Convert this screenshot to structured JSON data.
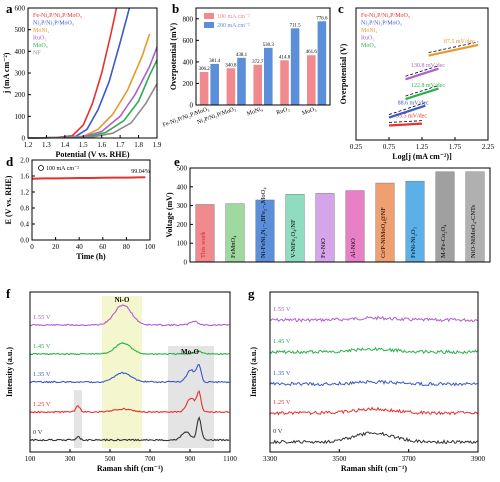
{
  "panel_labels": [
    "a",
    "b",
    "c",
    "d",
    "e",
    "f",
    "g"
  ],
  "chart_data": [
    {
      "panel": "a",
      "type": "line",
      "xlabel": "Potential (V vs. RHE)",
      "ylabel": "j (mA cm⁻²)",
      "xlim": [
        1.2,
        1.9
      ],
      "ylim": [
        0,
        600
      ],
      "xticks": [
        1.2,
        1.3,
        1.4,
        1.5,
        1.6,
        1.7,
        1.8,
        1.9
      ],
      "yticks": [
        0,
        100,
        200,
        300,
        400,
        500,
        600
      ],
      "legend_position": "top-left",
      "series": [
        {
          "name": "Fe-Ni₂P/Ni₂P/MoO₃",
          "color": "#e8312f",
          "x": [
            1.2,
            1.35,
            1.44,
            1.5,
            1.55,
            1.6,
            1.65,
            1.68
          ],
          "y": [
            0,
            2,
            10,
            60,
            160,
            300,
            480,
            600
          ]
        },
        {
          "name": "Ni₂P/Ni₂P/MoO₃",
          "color": "#3b59c7",
          "x": [
            1.2,
            1.36,
            1.46,
            1.52,
            1.58,
            1.64,
            1.7,
            1.75
          ],
          "y": [
            0,
            2,
            8,
            40,
            130,
            260,
            440,
            600
          ]
        },
        {
          "name": "MoNi₄",
          "color": "#e89a2a",
          "x": [
            1.2,
            1.38,
            1.5,
            1.58,
            1.66,
            1.74,
            1.82,
            1.86
          ],
          "y": [
            0,
            2,
            8,
            40,
            110,
            220,
            380,
            480
          ]
        },
        {
          "name": "RuO₂",
          "color": "#b05fd0",
          "x": [
            1.2,
            1.38,
            1.5,
            1.6,
            1.7,
            1.78,
            1.86,
            1.9
          ],
          "y": [
            0,
            2,
            6,
            30,
            100,
            200,
            330,
            420
          ]
        },
        {
          "name": "MoO₃",
          "color": "#2bb04a",
          "x": [
            1.2,
            1.4,
            1.52,
            1.62,
            1.72,
            1.8,
            1.86,
            1.9
          ],
          "y": [
            0,
            2,
            5,
            25,
            80,
            170,
            290,
            360
          ]
        },
        {
          "name": "NF",
          "color": "#8c8c8c",
          "x": [
            1.2,
            1.42,
            1.55,
            1.66,
            1.76,
            1.84,
            1.9
          ],
          "y": [
            0,
            2,
            5,
            22,
            70,
            160,
            250
          ]
        }
      ]
    },
    {
      "panel": "b",
      "type": "bar",
      "ylabel": "Overpotential (mV)",
      "ylim": [
        0,
        900
      ],
      "yticks": [
        0,
        200,
        400,
        600,
        800
      ],
      "categories": [
        "Fe-Ni₂P/Ni₂P/MoO₃",
        "Ni₂P/Ni₂P/MoO₃",
        "MoNi₄",
        "RuO₂",
        "MoO₃"
      ],
      "legend_position": "top-left",
      "series": [
        {
          "name": "100 mA cm⁻²",
          "color": "#f08a8e",
          "values": [
            306.2,
            340.8,
            372.7,
            414.8,
            461.6
          ],
          "labels": [
            "306.2",
            "340.8",
            "372.7",
            "414.8",
            "461.6"
          ]
        },
        {
          "name": "200 mA cm⁻²",
          "color": "#5b8fd9",
          "values": [
            381.4,
            438.1,
            530.3,
            711.5,
            776.6
          ],
          "labels": [
            "381.4",
            "438.1",
            "530.3",
            "711.5",
            "776.6"
          ]
        }
      ]
    },
    {
      "panel": "c",
      "type": "line",
      "xlabel": "Log[j (mA cm⁻²)]",
      "ylabel": "Overpotential (V)",
      "xlim": [
        0.25,
        2.25
      ],
      "ylim": [
        0.2,
        0.7
      ],
      "xticks": [
        0.25,
        0.75,
        1.25,
        1.75,
        2.25
      ],
      "legend_position": "top-left",
      "series": [
        {
          "name": "Fe-Ni₂P/Ni₂P/MoO₃",
          "color": "#e8312f",
          "x": [
            0.75,
            1.25
          ],
          "y": [
            0.255,
            0.262
          ],
          "slope_label": "35.5 mV/dec"
        },
        {
          "name": "Ni₂P/Ni₂P/MoO₃",
          "color": "#3b59c7",
          "x": [
            0.75,
            1.3
          ],
          "y": [
            0.285,
            0.33
          ],
          "slope_label": "88.6 mV/dec"
        },
        {
          "name": "MoNi₄",
          "color": "#e89a2a",
          "x": [
            1.35,
            2.1
          ],
          "y": [
            0.52,
            0.56
          ],
          "slope_label": "87.5 mV/dec"
        },
        {
          "name": "RuO₂",
          "color": "#b05fd0",
          "x": [
            1.0,
            1.5
          ],
          "y": [
            0.43,
            0.47
          ],
          "slope_label": "130.8 mV/dec"
        },
        {
          "name": "MoO₃",
          "color": "#2bb04a",
          "x": [
            1.0,
            1.5
          ],
          "y": [
            0.355,
            0.395
          ],
          "slope_label": "122.8 mV/dec"
        }
      ]
    },
    {
      "panel": "d",
      "type": "line",
      "xlabel": "Time (h)",
      "ylabel": "E (V vs. RHE)",
      "xlim": [
        0,
        100
      ],
      "ylim": [
        0.0,
        2.0
      ],
      "xticks": [
        0,
        20,
        40,
        60,
        80,
        100
      ],
      "yticks": [
        0.0,
        0.4,
        0.8,
        1.2,
        1.6,
        2.0
      ],
      "legend_position": "top-left",
      "annotation": "99.04%",
      "series": [
        {
          "name": "100 mA cm⁻²",
          "color": "#e8312f",
          "x": [
            0,
            10,
            20,
            30,
            40,
            50,
            60,
            70,
            80,
            90,
            96
          ],
          "y": [
            1.53,
            1.54,
            1.54,
            1.545,
            1.55,
            1.55,
            1.555,
            1.56,
            1.56,
            1.565,
            1.57
          ]
        }
      ]
    },
    {
      "panel": "e",
      "type": "bar",
      "ylabel": "Voltage (mV)",
      "ylim": [
        0,
        500
      ],
      "yticks": [
        0,
        100,
        200,
        300,
        400,
        500
      ],
      "categories": [
        "This work",
        "FeMnO₄",
        "Ni-FeNi₂N₁₋ₓBFe₂₋ₓMoO₄",
        "V-NiFe₂O₄/NF",
        "Fe-NiO",
        "Al-NiO",
        "Cr/P-NiMoO₄@NF",
        "FeNi-Ni₂O₃",
        "M-Fe-Co₂O₄",
        "NiO-NiMoO₄-CNTs"
      ],
      "colors": [
        "#f08a8e",
        "#9fd9a0",
        "#5b8fd9",
        "#8fdcc0",
        "#d6a4e8",
        "#e880c8",
        "#f0a070",
        "#5bb0e8",
        "#a0a0a0",
        "#b0b0b0"
      ],
      "values": [
        306,
        310,
        330,
        360,
        365,
        380,
        420,
        430,
        480,
        480
      ]
    },
    {
      "panel": "f",
      "type": "line",
      "xlabel": "Raman shift (cm⁻¹)",
      "ylabel": "Intensity (a.u.)",
      "xlim": [
        100,
        1100
      ],
      "xticks": [
        100,
        300,
        500,
        700,
        900,
        1100
      ],
      "annotations": [
        "Ni-O",
        "Mo-O"
      ],
      "series": [
        {
          "name": "1.55 V",
          "color": "#b05fd0"
        },
        {
          "name": "1.45 V",
          "color": "#2bb04a"
        },
        {
          "name": "1.35 V",
          "color": "#3b59c7"
        },
        {
          "name": "1.25 V",
          "color": "#e8312f"
        },
        {
          "name": "0 V",
          "color": "#333333"
        }
      ]
    },
    {
      "panel": "g",
      "type": "line",
      "xlabel": "Raman shift (cm⁻¹)",
      "ylabel": "Intensity (a.u.)",
      "xlim": [
        3300,
        3900
      ],
      "xticks": [
        3300,
        3500,
        3700,
        3900
      ],
      "series": [
        {
          "name": "1.55 V",
          "color": "#b05fd0"
        },
        {
          "name": "1.45 V",
          "color": "#2bb04a"
        },
        {
          "name": "1.35 V",
          "color": "#3b59c7"
        },
        {
          "name": "1.25 V",
          "color": "#e8312f"
        },
        {
          "name": "0 V",
          "color": "#333333"
        }
      ]
    }
  ]
}
